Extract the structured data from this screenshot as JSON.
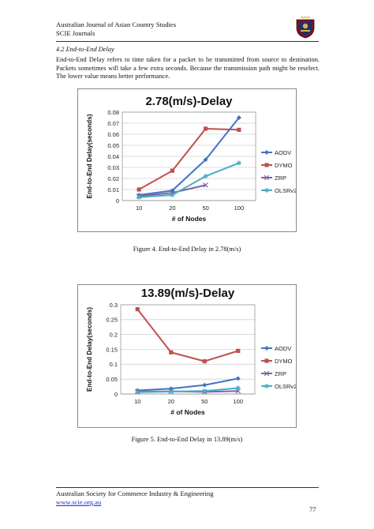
{
  "header": {
    "journal": "Australian Journal of Asian Country Studies",
    "index": "SCIE Journals"
  },
  "section": {
    "heading": "4.2 End-to-End Delay"
  },
  "body_text": "End-to-End Delay refers to time taken for a packet to be transmitted from source to destination. Packets sometimes will take a few extra seconds. Because the transmission path might be reselect. The lower value means better performance.",
  "figure4": {
    "caption": "Figure 4. End-to-End Delay in 2.78(m/s)"
  },
  "figure5": {
    "caption": "Figure 5. End-to-End Delay in 13.89(m/s)"
  },
  "footer": {
    "org": "Australian Society for Commerce Industry & Engineering",
    "url": "www.scie.org.au",
    "page": "77"
  },
  "chart_data": [
    {
      "type": "line",
      "title": "2.78(m/s)-Delay",
      "xlabel": "# of Nodes",
      "ylabel": "End-to-End Delay(seconds)",
      "categories": [
        "10",
        "20",
        "50",
        "100"
      ],
      "ylim": [
        0,
        0.08
      ],
      "yticks": [
        "0",
        "0.01",
        "0.02",
        "0.03",
        "0.04",
        "0.05",
        "0.06",
        "0.07",
        "0.08"
      ],
      "grid": true,
      "legend": "right",
      "series": [
        {
          "name": "AODV",
          "color": "#4472c4",
          "marker": "diamond",
          "values": [
            0.005,
            0.009,
            0.037,
            0.075
          ]
        },
        {
          "name": "DYMO",
          "color": "#c0504d",
          "marker": "square",
          "values": [
            0.01,
            0.027,
            0.065,
            0.064
          ]
        },
        {
          "name": "ZRP",
          "color": "#7f63a6",
          "marker": "x",
          "values": [
            0.004,
            0.007,
            0.014,
            null
          ]
        },
        {
          "name": "OLSRv2",
          "color": "#4bacc6",
          "marker": "star",
          "values": [
            0.003,
            0.005,
            0.022,
            0.034
          ]
        }
      ]
    },
    {
      "type": "line",
      "title": "13.89(m/s)-Delay",
      "xlabel": "# of Nodes",
      "ylabel": "End-to-End Delay(seconds)",
      "categories": [
        "10",
        "20",
        "50",
        "100"
      ],
      "ylim": [
        0,
        0.3
      ],
      "yticks": [
        "0",
        "0.05",
        "0.1",
        "0.15",
        "0.2",
        "0.25",
        "0.3"
      ],
      "grid": true,
      "legend": "right",
      "series": [
        {
          "name": "AODV",
          "color": "#4472c4",
          "marker": "diamond",
          "values": [
            0.012,
            0.018,
            0.03,
            0.052
          ]
        },
        {
          "name": "DYMO",
          "color": "#c0504d",
          "marker": "square",
          "values": [
            0.285,
            0.14,
            0.11,
            0.145
          ]
        },
        {
          "name": "ZRP",
          "color": "#7f63a6",
          "marker": "x",
          "values": [
            0.008,
            0.009,
            0.007,
            0.01
          ]
        },
        {
          "name": "OLSRv2",
          "color": "#4bacc6",
          "marker": "star",
          "values": [
            0.006,
            0.008,
            0.01,
            0.02
          ]
        }
      ]
    }
  ]
}
